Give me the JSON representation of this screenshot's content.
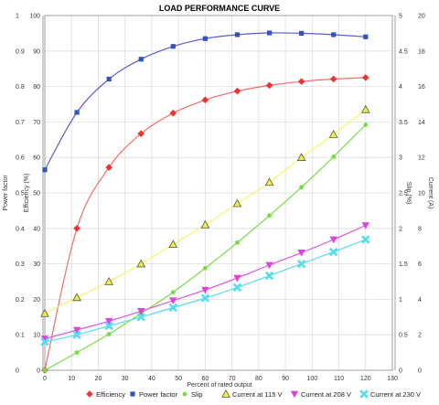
{
  "chart_data": {
    "type": "line",
    "title": "LOAD PERFORMANCE CURVE",
    "xlabel": "Percent of rated output",
    "xlim": [
      0,
      130
    ],
    "xticks": [
      "0",
      "10",
      "20",
      "30",
      "40",
      "50",
      "60",
      "70",
      "80",
      "90",
      "100",
      "110",
      "120",
      "130"
    ],
    "axes": {
      "power_factor": {
        "label": "Power factor",
        "position": "left-outer",
        "range": [
          0,
          1
        ],
        "ticks": [
          "0",
          "0.1",
          "0.2",
          "0.3",
          "0.4",
          "0.5",
          "0.6",
          "0.7",
          "0.8",
          "0.9",
          "1"
        ]
      },
      "efficiency": {
        "label": "Efficiency (%)",
        "position": "left-inner",
        "range": [
          0,
          100
        ],
        "ticks": [
          "0",
          "10",
          "20",
          "30",
          "40",
          "50",
          "60",
          "70",
          "80",
          "90",
          "100"
        ]
      },
      "slip": {
        "label": "Slip (%)",
        "position": "right-inner",
        "range": [
          0,
          5
        ],
        "ticks": [
          "0",
          "0.5",
          "1",
          "1.5",
          "2",
          "2.5",
          "3",
          "3.5",
          "4",
          "4.5",
          "5"
        ]
      },
      "current": {
        "label": "Current (A)",
        "position": "right-outer",
        "range": [
          0,
          20
        ],
        "ticks": [
          "0",
          "2",
          "4",
          "6",
          "8",
          "10",
          "12",
          "14",
          "16",
          "18",
          "20"
        ]
      }
    },
    "grid": true,
    "legend_position": "bottom",
    "series": [
      {
        "name": "Efficiency",
        "axis": "efficiency",
        "color": "#ee3333",
        "curve_color": "#f36b6b",
        "marker": "diamond",
        "x": [
          0,
          12,
          24,
          36,
          48,
          60,
          72,
          84,
          96,
          108,
          120
        ],
        "y": [
          0,
          40,
          57.2,
          66.7,
          72.5,
          76.2,
          78.7,
          80.3,
          81.4,
          82.1,
          82.5
        ]
      },
      {
        "name": "Power factor",
        "axis": "power_factor",
        "color": "#3355bb",
        "curve_color": "#5a5acf",
        "marker": "square",
        "x": [
          0,
          12,
          24,
          36,
          48,
          60,
          72,
          84,
          96,
          108,
          120
        ],
        "y": [
          0.565,
          0.727,
          0.821,
          0.877,
          0.913,
          0.935,
          0.946,
          0.951,
          0.95,
          0.946,
          0.94
        ]
      },
      {
        "name": "Slip",
        "axis": "slip",
        "color": "#77dd44",
        "curve_color": "#77dd44",
        "marker": "dot",
        "x": [
          0,
          12,
          24,
          36,
          48,
          60,
          72,
          84,
          96,
          108,
          120
        ],
        "y": [
          0,
          0.25,
          0.51,
          0.8,
          1.1,
          1.44,
          1.8,
          2.18,
          2.58,
          3.01,
          3.46
        ]
      },
      {
        "name": "Current at 115 V",
        "axis": "current",
        "color": "#eeee44",
        "curve_color": "#f5f566",
        "marker": "triangle",
        "x": [
          0,
          12,
          24,
          36,
          48,
          60,
          72,
          84,
          96,
          108,
          120
        ],
        "y": [
          3.2,
          4.1,
          5.0,
          6.0,
          7.1,
          8.2,
          9.4,
          10.6,
          12.0,
          13.3,
          14.7
        ]
      },
      {
        "name": "Current at 208 V",
        "axis": "current",
        "color": "#dd44dd",
        "curve_color": "#dd55dd",
        "marker": "triangle-down",
        "x": [
          0,
          12,
          24,
          36,
          48,
          60,
          72,
          84,
          96,
          108,
          120
        ],
        "y": [
          1.77,
          2.27,
          2.77,
          3.33,
          3.93,
          4.53,
          5.2,
          5.93,
          6.63,
          7.37,
          8.17
        ]
      },
      {
        "name": "Current at 230 V",
        "axis": "current",
        "color": "#55ddee",
        "curve_color": "#55ddee",
        "marker": "x",
        "x": [
          0,
          12,
          24,
          36,
          48,
          60,
          72,
          84,
          96,
          108,
          120
        ],
        "y": [
          1.6,
          2.0,
          2.5,
          3.0,
          3.53,
          4.07,
          4.67,
          5.33,
          6.0,
          6.67,
          7.37
        ]
      }
    ]
  }
}
